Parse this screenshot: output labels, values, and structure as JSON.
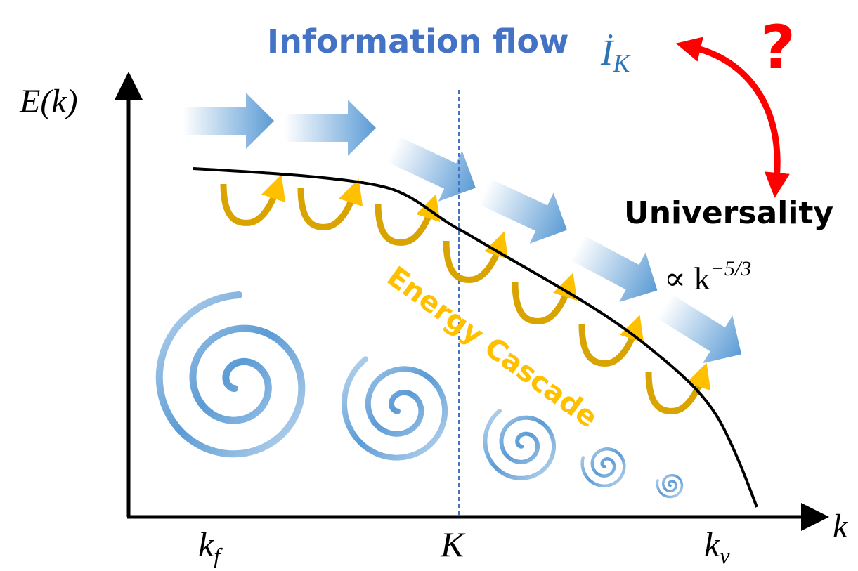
{
  "title": "Information flow",
  "information_symbol": {
    "base": "İ",
    "subscript": "K"
  },
  "question": "?",
  "y_axis_label": "E(k)",
  "x_axis_label": "k",
  "universality": "Universality",
  "scaling": {
    "base": "∝ k",
    "superscript": "−5/3"
  },
  "cascade_label": "Energy Cascade",
  "x_marks": [
    {
      "base": "k",
      "subscript": "f"
    },
    {
      "base": "K",
      "subscript": ""
    },
    {
      "base": "k",
      "subscript": "ν"
    }
  ]
}
